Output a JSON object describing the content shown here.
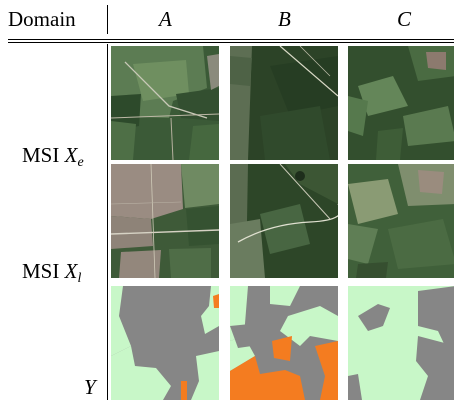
{
  "header": {
    "domain_label": "Domain",
    "columns": [
      "A",
      "B",
      "C"
    ]
  },
  "rows": [
    {
      "name": "MSI",
      "symbol": "X",
      "subscript": "e"
    },
    {
      "name": "MSI",
      "symbol": "X",
      "subscript": "l"
    },
    {
      "name": "",
      "symbol": "Y",
      "subscript": ""
    }
  ],
  "label_colors": {
    "deforestation": "#f47c20",
    "no_change": "#c8f7c8",
    "forest": "#868686"
  }
}
